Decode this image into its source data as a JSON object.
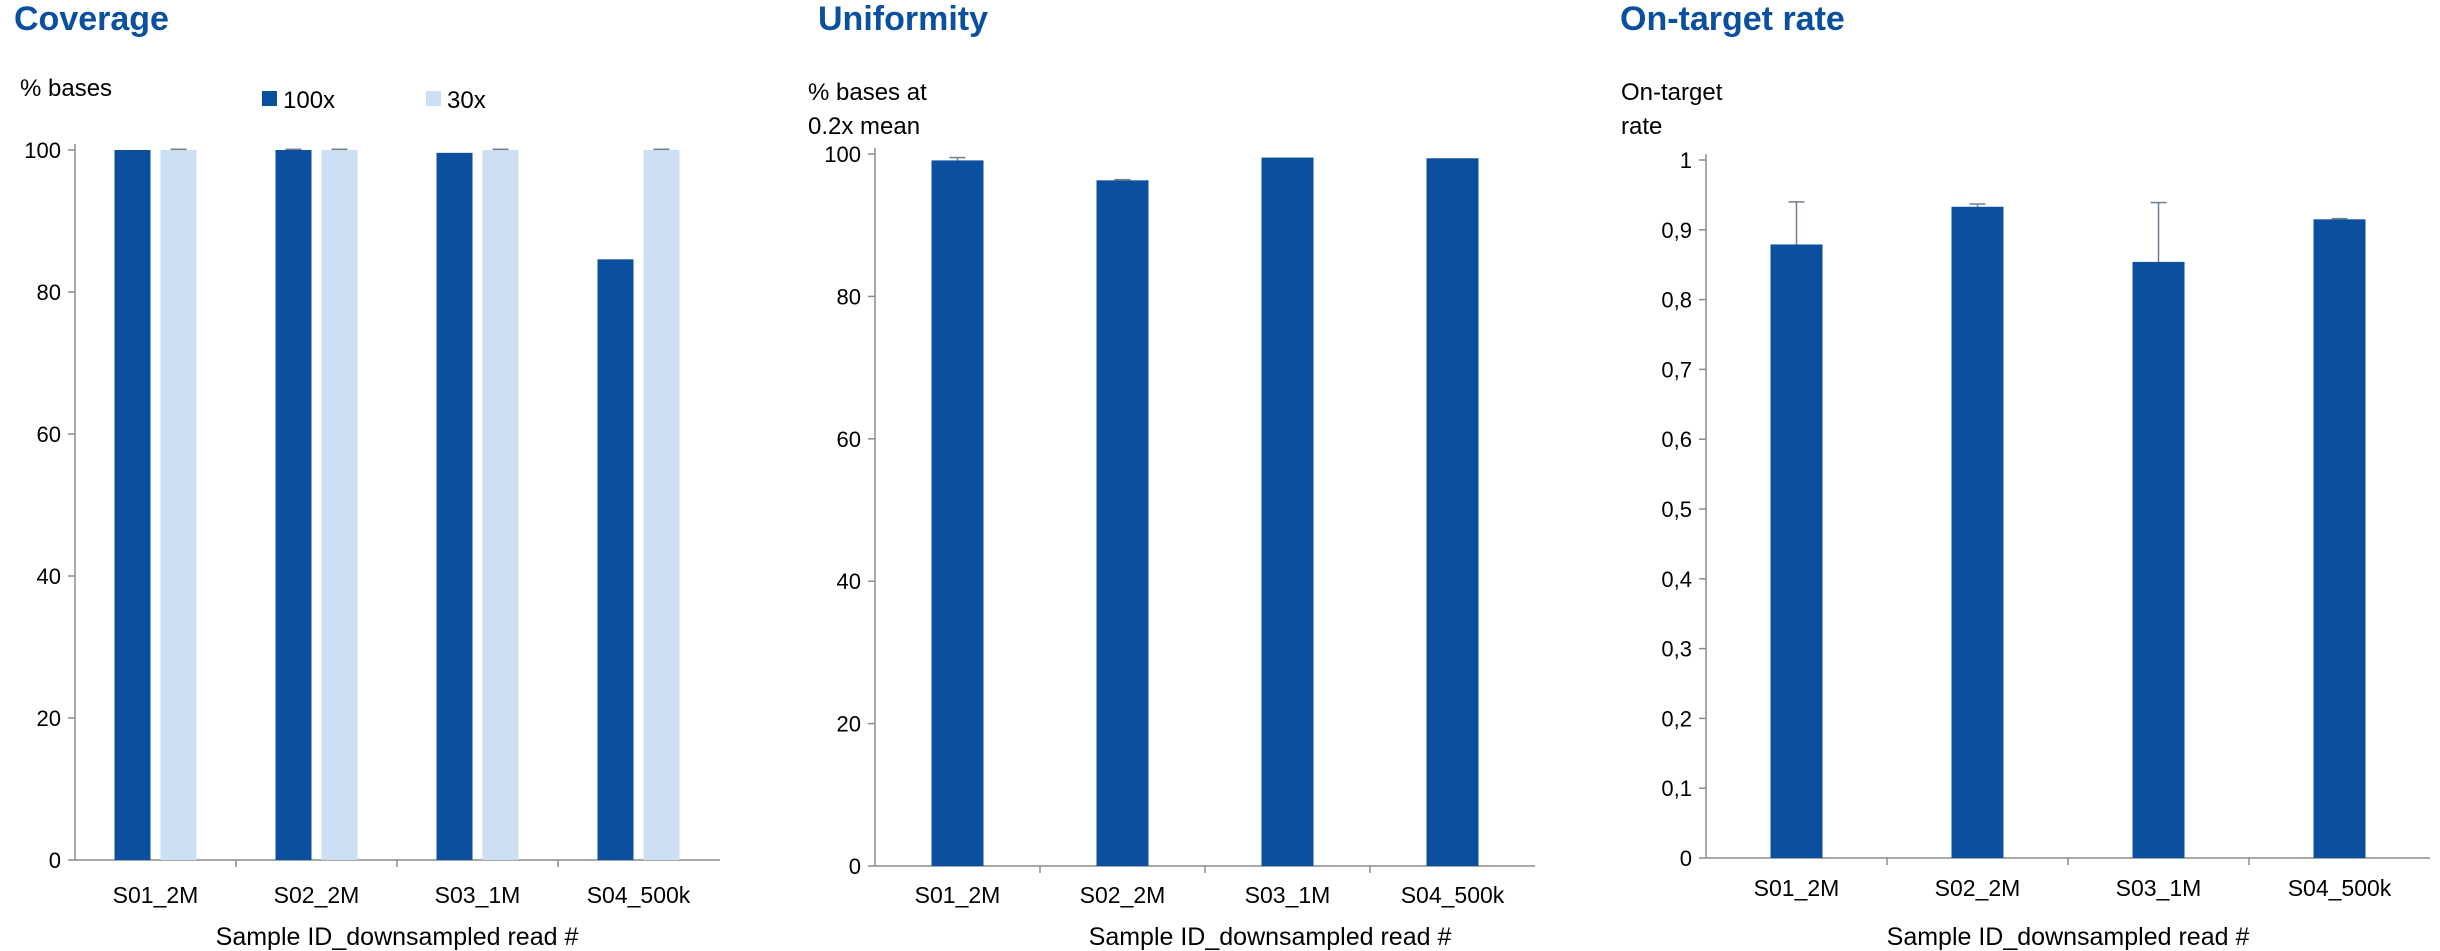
{
  "colors": {
    "title": "#0b4f9f",
    "dark_blue": "#0b4f9f",
    "light_blue": "#cddff2",
    "axis": "#8c8c8c",
    "error_bar": "#6f7f8f"
  },
  "chart_data": [
    {
      "type": "bar",
      "title": "Coverage",
      "ylabel_lines": [
        "% bases"
      ],
      "xlabel": "Sample ID_downsampled read #",
      "categories": [
        "S01_2M",
        "S02_2M",
        "S03_1M",
        "S04_500k"
      ],
      "series": [
        {
          "name": "100x",
          "color": "#0b4f9f",
          "values": [
            100,
            100,
            99.6,
            84.6
          ],
          "errors": [
            0,
            0.1,
            0,
            0
          ]
        },
        {
          "name": "30x",
          "color": "#cddff2",
          "values": [
            100,
            100,
            100,
            100
          ],
          "errors": [
            0.1,
            0.1,
            0.1,
            0.1
          ]
        }
      ],
      "ylim": [
        0,
        100
      ],
      "yticks": [
        "0",
        "20",
        "40",
        "60",
        "80",
        "100"
      ],
      "ytick_values": [
        0,
        20,
        40,
        60,
        80,
        100
      ],
      "grid": false,
      "legend_position": "top"
    },
    {
      "type": "bar",
      "title": "Uniformity",
      "ylabel_lines": [
        "% bases at",
        "0.2x mean"
      ],
      "xlabel": "Sample ID_downsampled read #",
      "categories": [
        "S01_2M",
        "S02_2M",
        "S03_1M",
        "S04_500k"
      ],
      "series": [
        {
          "color": "#0b4f9f",
          "values": [
            99.1,
            96.3,
            99.5,
            99.4
          ],
          "errors": [
            0.4,
            0.1,
            0,
            0
          ]
        }
      ],
      "ylim": [
        0,
        100
      ],
      "yticks": [
        "0",
        "20",
        "40",
        "60",
        "80",
        "100"
      ],
      "ytick_values": [
        0,
        20,
        40,
        60,
        80,
        100
      ],
      "grid": false
    },
    {
      "type": "bar",
      "title": "On-target rate",
      "ylabel_lines": [
        "On-target",
        "rate"
      ],
      "xlabel": "Sample ID_downsampled read #",
      "categories": [
        "S01_2M",
        "S02_2M",
        "S03_1M",
        "S04_500k"
      ],
      "series": [
        {
          "color": "#0b4f9f",
          "values": [
            0.879,
            0.933,
            0.854,
            0.915
          ],
          "errors": [
            0.061,
            0.004,
            0.085,
            0.001
          ]
        }
      ],
      "ylim": [
        0,
        1
      ],
      "yticks": [
        "0",
        "0,1",
        "0,2",
        "0,3",
        "0,4",
        "0,5",
        "0,6",
        "0,7",
        "0,8",
        "0,9",
        "1"
      ],
      "ytick_values": [
        0,
        0.1,
        0.2,
        0.3,
        0.4,
        0.5,
        0.6,
        0.7,
        0.8,
        0.9,
        1
      ],
      "grid": false
    }
  ]
}
